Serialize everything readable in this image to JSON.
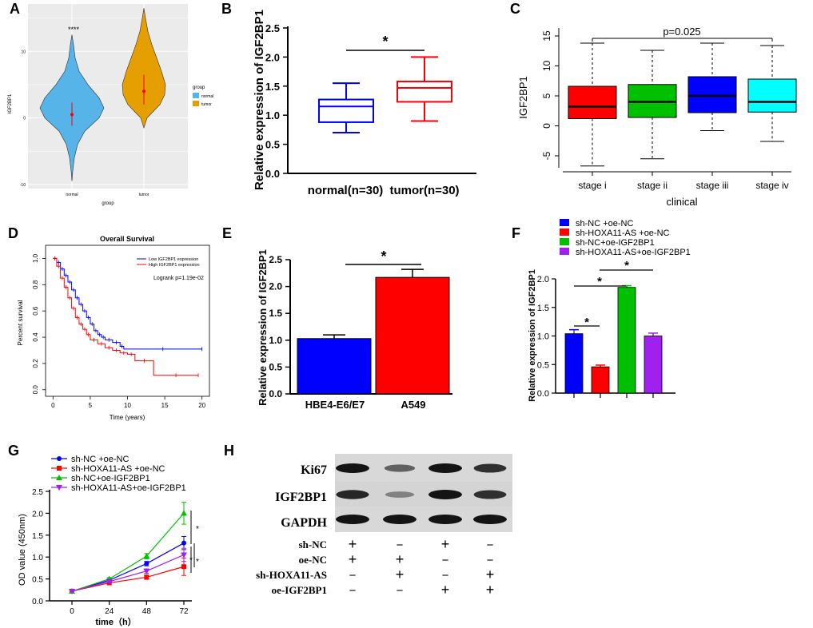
{
  "panel_labels": [
    "A",
    "B",
    "C",
    "D",
    "E",
    "F",
    "G",
    "H"
  ],
  "colors": {
    "blue": "#0000ff",
    "red": "#ff0000",
    "green": "#00c000",
    "purple": "#a020f0",
    "cyan": "#00ffff",
    "violin_normal": "#56b4e9",
    "violin_tumor": "#e69f00",
    "grey_bg": "#ebebeb"
  },
  "chart_data": [
    {
      "id": "A",
      "type": "violin",
      "ylabel": "IGF2BP1",
      "xlabel": "group",
      "categories": [
        "normal",
        "tumor"
      ],
      "y_ticks": [
        "10",
        "0",
        "-10"
      ],
      "ylim": [
        -10.5,
        17
      ],
      "means": [
        0.5,
        4.0
      ],
      "quartiles": [
        [
          -1.2,
          2.3
        ],
        [
          2.0,
          6.5
        ]
      ],
      "signif": "****",
      "legend": {
        "title": "group",
        "entries": [
          "normal",
          "tumor"
        ]
      }
    },
    {
      "id": "B",
      "type": "box",
      "ylabel": "Relative expression of IGF2BP1",
      "categories": [
        "normal(n=30)",
        "tumor(n=30)"
      ],
      "y_ticks": [
        "0.0",
        "0.5",
        "1.0",
        "1.5",
        "2.0",
        "2.5"
      ],
      "ylim": [
        0,
        2.5
      ],
      "boxes": [
        {
          "min": 0.7,
          "q1": 0.88,
          "median": 1.15,
          "q3": 1.27,
          "max": 1.55
        },
        {
          "min": 0.9,
          "q1": 1.23,
          "median": 1.47,
          "q3": 1.58,
          "max": 2.0
        }
      ],
      "signif": "*"
    },
    {
      "id": "C",
      "type": "box",
      "ylabel": "IGF2BP1",
      "xlabel": "clinical",
      "categories": [
        "stage i",
        "stage ii",
        "stage iii",
        "stage iv"
      ],
      "y_ticks": [
        "-5",
        "0",
        "5",
        "10",
        "15"
      ],
      "ylim": [
        -7,
        17
      ],
      "boxes": [
        {
          "min": -6.7,
          "q1": 1.2,
          "median": 3.2,
          "q3": 6.6,
          "max": 13.8
        },
        {
          "min": -5.5,
          "q1": 1.4,
          "median": 4.0,
          "q3": 6.9,
          "max": 12.6
        },
        {
          "min": -0.8,
          "q1": 2.2,
          "median": 5.0,
          "q3": 8.2,
          "max": 13.8
        },
        {
          "min": -2.6,
          "q1": 2.3,
          "median": 4.0,
          "q3": 7.8,
          "max": 13.4
        }
      ],
      "pvalue": "p=0.025"
    },
    {
      "id": "D",
      "type": "line",
      "title": "Overall Survival",
      "xlabel": "Time (years)",
      "ylabel": "Percent survival",
      "x_ticks": [
        "0",
        "5",
        "10",
        "15",
        "20"
      ],
      "y_ticks": [
        "0.0",
        "0.2",
        "0.4",
        "0.6",
        "0.8",
        "1.0"
      ],
      "xlim": [
        -1,
        21
      ],
      "ylim": [
        -0.05,
        1.1
      ],
      "legend": [
        "Low IGF2BP1 expression",
        "High IGF2BP1 expression"
      ],
      "annotation": "Logrank p=1.19e-02",
      "series": [
        {
          "name": "Low IGF2BP1 expression",
          "x": [
            0,
            0.5,
            1,
            1.5,
            2,
            2.5,
            3,
            3.5,
            4,
            4.5,
            5,
            5.5,
            6,
            6.5,
            7,
            8,
            9,
            9.5,
            20
          ],
          "y": [
            1,
            0.97,
            0.92,
            0.87,
            0.82,
            0.76,
            0.7,
            0.65,
            0.6,
            0.55,
            0.5,
            0.45,
            0.42,
            0.4,
            0.38,
            0.36,
            0.33,
            0.31,
            0.31
          ]
        },
        {
          "name": "High IGF2BP1 expression",
          "x": [
            0,
            0.5,
            1,
            1.5,
            2,
            2.5,
            3,
            3.5,
            4,
            4.5,
            5,
            6,
            7,
            8,
            9,
            10,
            11,
            13.5,
            19.5
          ],
          "y": [
            1,
            0.94,
            0.85,
            0.78,
            0.7,
            0.62,
            0.55,
            0.5,
            0.46,
            0.42,
            0.38,
            0.35,
            0.32,
            0.3,
            0.28,
            0.27,
            0.22,
            0.11,
            0.11
          ]
        }
      ]
    },
    {
      "id": "E",
      "type": "bar",
      "ylabel": "Relative expression of IGF2BP1",
      "categories": [
        "HBE4-E6/E7",
        "A549"
      ],
      "values": [
        1.03,
        2.17
      ],
      "errors": [
        0.07,
        0.15
      ],
      "y_ticks": [
        "0.0",
        "0.5",
        "1.0",
        "1.5",
        "2.0",
        "2.5"
      ],
      "ylim": [
        0,
        2.5
      ],
      "signif": "*"
    },
    {
      "id": "F",
      "type": "bar",
      "ylabel": "Relative expression of IGF2BP1",
      "legend": [
        "sh-NC +oe-NC",
        "sh-HOXA11-AS +oe-NC",
        "sh-NC+oe-IGF2BP1",
        "sh-HOXA11-AS+oe-IGF2BP1"
      ],
      "values": [
        1.04,
        0.46,
        1.85,
        1.0
      ],
      "errors": [
        0.07,
        0.03,
        0.03,
        0.05
      ],
      "y_ticks": [
        "0.0",
        "0.5",
        "1.0",
        "1.5",
        "2.0"
      ],
      "ylim": [
        0,
        2.0
      ],
      "signif": [
        "*",
        "*",
        "*"
      ]
    },
    {
      "id": "G",
      "type": "line",
      "xlabel": "time（h）",
      "ylabel": "OD value (450nm)",
      "x": [
        0,
        24,
        48,
        72
      ],
      "x_ticks": [
        "0",
        "24",
        "48",
        "72"
      ],
      "y_ticks": [
        "0.0",
        "0.5",
        "1.0",
        "1.5",
        "2.0",
        "2.5"
      ],
      "ylim": [
        0,
        2.5
      ],
      "series": [
        {
          "name": "sh-NC +oe-NC",
          "values": [
            0.22,
            0.47,
            0.85,
            1.32
          ]
        },
        {
          "name": "sh-HOXA11-AS +oe-NC",
          "values": [
            0.22,
            0.41,
            0.54,
            0.78
          ]
        },
        {
          "name": "sh-NC+oe-IGF2BP1",
          "values": [
            0.22,
            0.5,
            1.02,
            2.0
          ]
        },
        {
          "name": "sh-HOXA11-AS+oe-IGF2BP1",
          "values": [
            0.22,
            0.44,
            0.68,
            1.05
          ]
        }
      ],
      "signif": [
        "*",
        "*",
        "*"
      ]
    }
  ],
  "blot": {
    "bands": [
      "Ki67",
      "IGF2BP1",
      "GAPDH"
    ],
    "intensity": [
      [
        1,
        0.55,
        1,
        0.85
      ],
      [
        0.9,
        0.3,
        1,
        0.85
      ],
      [
        1,
        1,
        1,
        1
      ]
    ],
    "conditions": [
      "sh-NC",
      "oe-NC",
      "sh-HOXA11-AS",
      "oe-IGF2BP1"
    ],
    "grid": [
      [
        "+",
        "−",
        "+",
        "−"
      ],
      [
        "+",
        "+",
        "−",
        "−"
      ],
      [
        "−",
        "+",
        "−",
        "+"
      ],
      [
        "−",
        "−",
        "+",
        "+"
      ]
    ]
  }
}
